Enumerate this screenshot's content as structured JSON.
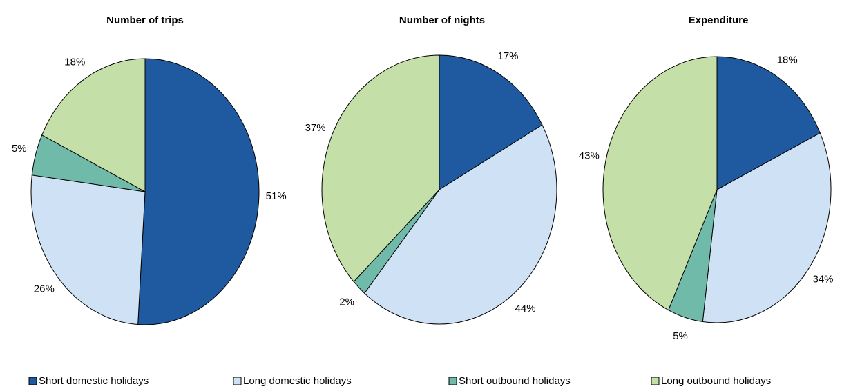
{
  "legend": {
    "categories": [
      "Short domestic holidays",
      "Long domestic holidays",
      "Short outbound holidays",
      "Long outbound holidays"
    ],
    "colors": [
      "#1f5aa0",
      "#cfe2f5",
      "#6fbaa9",
      "#c4e0a8"
    ]
  },
  "chart_data": [
    {
      "type": "pie",
      "title": "Number of trips",
      "values": [
        51,
        26,
        5,
        18
      ],
      "value_labels": [
        "51%",
        "26%",
        "5%",
        "18%"
      ]
    },
    {
      "type": "pie",
      "title": "Number of nights",
      "values": [
        17,
        44,
        2,
        37
      ],
      "value_labels": [
        "17%",
        "44%",
        "2%",
        "37%"
      ]
    },
    {
      "type": "pie",
      "title": "Expenditure",
      "values": [
        18,
        34,
        5,
        43
      ],
      "value_labels": [
        "18%",
        "34%",
        "5%",
        "43%"
      ]
    }
  ]
}
